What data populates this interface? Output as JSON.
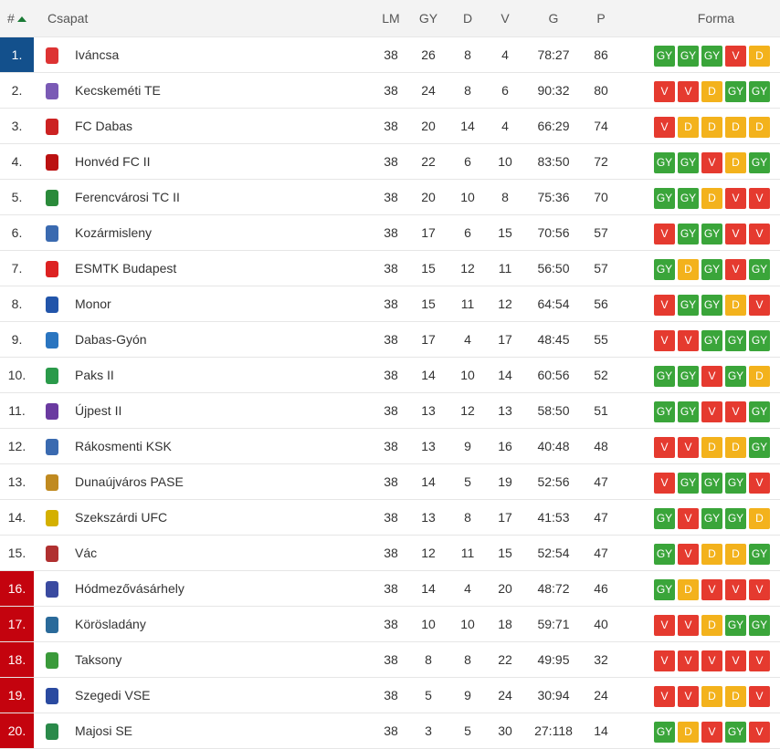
{
  "header": {
    "rank": "#",
    "team": "Csapat",
    "lm": "LM",
    "gy": "GY",
    "d": "D",
    "v": "V",
    "g": "G",
    "p": "P",
    "form": "Forma"
  },
  "colors": {
    "win": "#3aa53a",
    "loss": "#e53a2f",
    "draw": "#f3b21c",
    "top": "#13508c",
    "relegation": "#c4030e"
  },
  "rows": [
    {
      "rank": "1.",
      "team": "Iváncsa",
      "lm": "38",
      "gy": "26",
      "d": "8",
      "v": "4",
      "g": "78:27",
      "p": "86",
      "form": [
        "GY",
        "GY",
        "GY",
        "V",
        "D"
      ],
      "zone": "top",
      "logo_color": "#d33"
    },
    {
      "rank": "2.",
      "team": "Kecskeméti TE",
      "lm": "38",
      "gy": "24",
      "d": "8",
      "v": "6",
      "g": "90:32",
      "p": "80",
      "form": [
        "V",
        "V",
        "D",
        "GY",
        "GY"
      ],
      "zone": "",
      "logo_color": "#7a5ab5"
    },
    {
      "rank": "3.",
      "team": "FC Dabas",
      "lm": "38",
      "gy": "20",
      "d": "14",
      "v": "4",
      "g": "66:29",
      "p": "74",
      "form": [
        "V",
        "D",
        "D",
        "D",
        "D"
      ],
      "zone": "",
      "logo_color": "#c22"
    },
    {
      "rank": "4.",
      "team": "Honvéd FC II",
      "lm": "38",
      "gy": "22",
      "d": "6",
      "v": "10",
      "g": "83:50",
      "p": "72",
      "form": [
        "GY",
        "GY",
        "V",
        "D",
        "GY"
      ],
      "zone": "",
      "logo_color": "#b11"
    },
    {
      "rank": "5.",
      "team": "Ferencvárosi TC II",
      "lm": "38",
      "gy": "20",
      "d": "10",
      "v": "8",
      "g": "75:36",
      "p": "70",
      "form": [
        "GY",
        "GY",
        "D",
        "V",
        "V"
      ],
      "zone": "",
      "logo_color": "#2a8a3a"
    },
    {
      "rank": "6.",
      "team": "Kozármisleny",
      "lm": "38",
      "gy": "17",
      "d": "6",
      "v": "15",
      "g": "70:56",
      "p": "57",
      "form": [
        "V",
        "GY",
        "GY",
        "V",
        "V"
      ],
      "zone": "",
      "logo_color": "#3a6ab0"
    },
    {
      "rank": "7.",
      "team": "ESMTK Budapest",
      "lm": "38",
      "gy": "15",
      "d": "12",
      "v": "11",
      "g": "56:50",
      "p": "57",
      "form": [
        "GY",
        "D",
        "GY",
        "V",
        "GY"
      ],
      "zone": "",
      "logo_color": "#d22"
    },
    {
      "rank": "8.",
      "team": "Monor",
      "lm": "38",
      "gy": "15",
      "d": "11",
      "v": "12",
      "g": "64:54",
      "p": "56",
      "form": [
        "V",
        "GY",
        "GY",
        "D",
        "V"
      ],
      "zone": "",
      "logo_color": "#2255aa"
    },
    {
      "rank": "9.",
      "team": "Dabas-Gyón",
      "lm": "38",
      "gy": "17",
      "d": "4",
      "v": "17",
      "g": "48:45",
      "p": "55",
      "form": [
        "V",
        "V",
        "GY",
        "GY",
        "GY"
      ],
      "zone": "",
      "logo_color": "#2a75c0"
    },
    {
      "rank": "10.",
      "team": "Paks II",
      "lm": "38",
      "gy": "14",
      "d": "10",
      "v": "14",
      "g": "60:56",
      "p": "52",
      "form": [
        "GY",
        "GY",
        "V",
        "GY",
        "D"
      ],
      "zone": "",
      "logo_color": "#2a9a4a"
    },
    {
      "rank": "11.",
      "team": "Újpest II",
      "lm": "38",
      "gy": "13",
      "d": "12",
      "v": "13",
      "g": "58:50",
      "p": "51",
      "form": [
        "GY",
        "GY",
        "V",
        "V",
        "GY"
      ],
      "zone": "",
      "logo_color": "#6a3aa0"
    },
    {
      "rank": "12.",
      "team": "Rákosmenti KSK",
      "lm": "38",
      "gy": "13",
      "d": "9",
      "v": "16",
      "g": "40:48",
      "p": "48",
      "form": [
        "V",
        "V",
        "D",
        "D",
        "GY"
      ],
      "zone": "",
      "logo_color": "#3a6ab0"
    },
    {
      "rank": "13.",
      "team": "Dunaújváros PASE",
      "lm": "38",
      "gy": "14",
      "d": "5",
      "v": "19",
      "g": "52:56",
      "p": "47",
      "form": [
        "V",
        "GY",
        "GY",
        "GY",
        "V"
      ],
      "zone": "",
      "logo_color": "#c08a20"
    },
    {
      "rank": "14.",
      "team": "Szekszárdi UFC",
      "lm": "38",
      "gy": "13",
      "d": "8",
      "v": "17",
      "g": "41:53",
      "p": "47",
      "form": [
        "GY",
        "V",
        "GY",
        "GY",
        "D"
      ],
      "zone": "",
      "logo_color": "#d4b000"
    },
    {
      "rank": "15.",
      "team": "Vác",
      "lm": "38",
      "gy": "12",
      "d": "11",
      "v": "15",
      "g": "52:54",
      "p": "47",
      "form": [
        "GY",
        "V",
        "D",
        "D",
        "GY"
      ],
      "zone": "",
      "logo_color": "#b03030"
    },
    {
      "rank": "16.",
      "team": "Hódmezővásárhely",
      "lm": "38",
      "gy": "14",
      "d": "4",
      "v": "20",
      "g": "48:72",
      "p": "46",
      "form": [
        "GY",
        "D",
        "V",
        "V",
        "V"
      ],
      "zone": "relegation",
      "logo_color": "#3a4aa0"
    },
    {
      "rank": "17.",
      "team": "Körösladány",
      "lm": "38",
      "gy": "10",
      "d": "10",
      "v": "18",
      "g": "59:71",
      "p": "40",
      "form": [
        "V",
        "V",
        "D",
        "GY",
        "GY"
      ],
      "zone": "relegation",
      "logo_color": "#2a6a9a"
    },
    {
      "rank": "18.",
      "team": "Taksony",
      "lm": "38",
      "gy": "8",
      "d": "8",
      "v": "22",
      "g": "49:95",
      "p": "32",
      "form": [
        "V",
        "V",
        "V",
        "V",
        "V"
      ],
      "zone": "relegation",
      "logo_color": "#3a9a3a"
    },
    {
      "rank": "19.",
      "team": "Szegedi VSE",
      "lm": "38",
      "gy": "5",
      "d": "9",
      "v": "24",
      "g": "30:94",
      "p": "24",
      "form": [
        "V",
        "V",
        "D",
        "D",
        "V"
      ],
      "zone": "relegation",
      "logo_color": "#2a4aa0"
    },
    {
      "rank": "20.",
      "team": "Majosi SE",
      "lm": "38",
      "gy": "3",
      "d": "5",
      "v": "30",
      "g": "27:118",
      "p": "14",
      "form": [
        "GY",
        "D",
        "V",
        "GY",
        "V"
      ],
      "zone": "relegation",
      "logo_color": "#2a8a4a"
    }
  ]
}
